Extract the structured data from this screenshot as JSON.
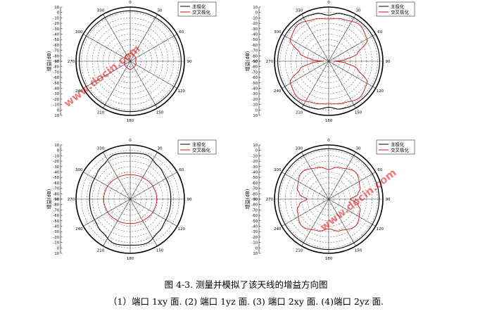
{
  "caption": {
    "title": "图 4-3. 测量并模拟了该天线的增益方向图",
    "subtitle": "（1）端口 1xy 面. (2) 端口 1yz 面. (3) 端口 2xy 面. (4)端口 2yz 面."
  },
  "watermark": "www.docin.com",
  "colors": {
    "co_pol": "#000000",
    "cross_pol": "#cc1111",
    "grid": "#666666"
  },
  "chart_data": [
    {
      "type": "polar",
      "panel": "(1)",
      "ylabel": "增益(dB)",
      "r_ticks": [
        10,
        0,
        -10,
        -20,
        -30,
        -40,
        -50,
        -60,
        -70,
        -80,
        -90
      ],
      "angle_ticks": [
        0,
        30,
        60,
        90,
        120,
        150,
        180,
        210,
        240,
        270,
        300,
        330
      ],
      "rlim": [
        -90,
        10
      ],
      "grid": true,
      "legend_position": "top-right",
      "series": [
        {
          "name": "主极化",
          "angles": [
            0,
            30,
            60,
            90,
            120,
            150,
            180,
            210,
            240,
            270,
            300,
            330,
            360
          ],
          "values": [
            3,
            3,
            3.5,
            4,
            3.5,
            3,
            3,
            3,
            3.5,
            4,
            3.5,
            3,
            3
          ]
        },
        {
          "name": "交叉极化",
          "angles": [
            0,
            30,
            60,
            90,
            120,
            150,
            180,
            210,
            240,
            270,
            300,
            330,
            360
          ],
          "values": [
            -75,
            -77,
            -78,
            -80,
            -78,
            -77,
            -75,
            -77,
            -78,
            -80,
            -78,
            -77,
            -75
          ]
        }
      ]
    },
    {
      "type": "polar",
      "panel": "(2)",
      "ylabel": "增益(dB)",
      "r_ticks": [
        10,
        0,
        -10,
        -20,
        -30,
        -40,
        -50,
        -60,
        -70,
        -80,
        -90
      ],
      "angle_ticks": [
        0,
        30,
        60,
        90,
        120,
        150,
        180,
        210,
        240,
        270,
        300,
        330
      ],
      "rlim": [
        -90,
        10
      ],
      "grid": true,
      "legend_position": "top-right",
      "series": [
        {
          "name": "主极化",
          "angles": [
            0,
            15,
            30,
            60,
            90,
            120,
            150,
            165,
            180,
            195,
            210,
            240,
            270,
            300,
            330,
            345,
            360
          ],
          "values": [
            -5,
            1,
            3,
            3.5,
            4,
            3.5,
            3,
            1,
            -5,
            1,
            3,
            3.5,
            4,
            3.5,
            3,
            1,
            -5
          ]
        },
        {
          "name": "交叉极化",
          "angles": [
            0,
            20,
            40,
            60,
            75,
            85,
            90,
            95,
            105,
            120,
            140,
            160,
            180,
            200,
            220,
            240,
            255,
            265,
            270,
            275,
            285,
            300,
            320,
            340,
            360
          ],
          "values": [
            -12,
            -8,
            -2,
            -8,
            -35,
            -60,
            -80,
            -60,
            -35,
            -8,
            -2,
            -8,
            -12,
            -8,
            -2,
            -8,
            -35,
            -60,
            -80,
            -60,
            -35,
            -8,
            -2,
            -8,
            -12
          ]
        }
      ]
    },
    {
      "type": "polar",
      "panel": "(3)",
      "ylabel": "增益(dB)",
      "r_ticks": [
        10,
        0,
        -10,
        -20,
        -30,
        -40,
        -50,
        -60,
        -70,
        -80,
        -90
      ],
      "angle_ticks": [
        0,
        30,
        60,
        90,
        120,
        150,
        180,
        210,
        240,
        270,
        300,
        330
      ],
      "rlim": [
        -90,
        10
      ],
      "grid": true,
      "legend_position": "top-right",
      "series": [
        {
          "name": "主极化",
          "angles": [
            0,
            20,
            40,
            60,
            90,
            120,
            140,
            160,
            180,
            200,
            220,
            240,
            270,
            300,
            320,
            340,
            360
          ],
          "values": [
            -5,
            -3,
            -10,
            -14,
            -15,
            -14,
            -10,
            -3,
            -5,
            -3,
            -10,
            -14,
            -15,
            -14,
            -10,
            -3,
            -5
          ]
        },
        {
          "name": "交叉极化",
          "angles": [
            0,
            30,
            60,
            90,
            120,
            150,
            180,
            210,
            240,
            270,
            300,
            330,
            360
          ],
          "values": [
            -45,
            -44,
            -42,
            -41,
            -42,
            -44,
            -45,
            -44,
            -42,
            -41,
            -42,
            -44,
            -45
          ]
        }
      ]
    },
    {
      "type": "polar",
      "panel": "(4)",
      "ylabel": "增益(dB)",
      "r_ticks": [
        10,
        0,
        -10,
        -20,
        -30,
        -40,
        -50,
        -60,
        -70,
        -80,
        -90
      ],
      "angle_ticks": [
        0,
        30,
        60,
        90,
        120,
        150,
        180,
        210,
        240,
        270,
        300,
        330
      ],
      "rlim": [
        -90,
        10
      ],
      "grid": true,
      "legend_position": "top-right",
      "series": [
        {
          "name": "主极化",
          "angles": [
            0,
            30,
            60,
            90,
            120,
            150,
            180,
            210,
            240,
            270,
            300,
            330,
            360
          ],
          "values": [
            3,
            3,
            3,
            3,
            3,
            3,
            3,
            3,
            3,
            3,
            3,
            3,
            3
          ]
        },
        {
          "name": "交叉极化",
          "angles": [
            0,
            20,
            45,
            70,
            80,
            90,
            100,
            110,
            135,
            160,
            180,
            200,
            225,
            250,
            260,
            270,
            280,
            290,
            315,
            340,
            360
          ],
          "values": [
            -35,
            -28,
            -20,
            -28,
            -35,
            -50,
            -35,
            -28,
            -20,
            -28,
            -35,
            -28,
            -20,
            -28,
            -35,
            -50,
            -35,
            -28,
            -20,
            -28,
            -35
          ]
        }
      ]
    }
  ]
}
